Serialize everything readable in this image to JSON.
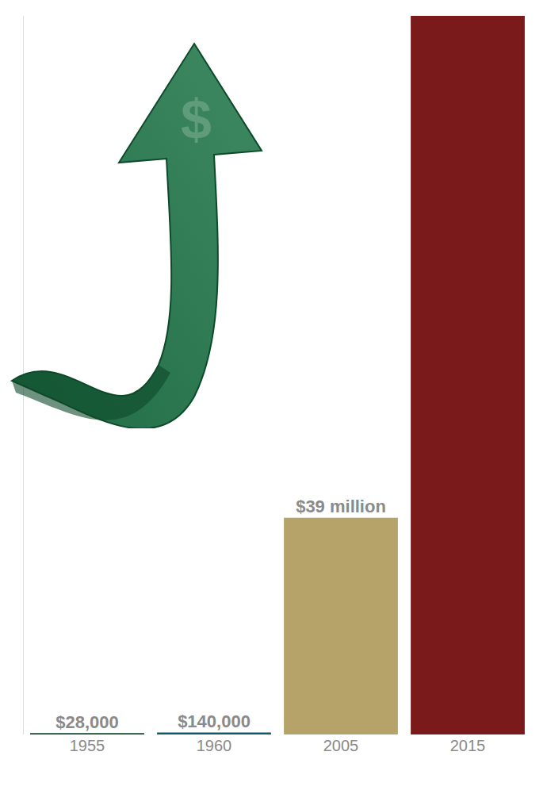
{
  "chart_data": {
    "type": "bar",
    "categories": [
      "1955",
      "1960",
      "2005",
      "2015"
    ],
    "values": [
      28000,
      140000,
      39000000,
      130000000
    ],
    "value_labels": [
      "$28,000",
      "$140,000",
      "$39 million",
      null
    ],
    "colors": [
      "#0d4a2a",
      "#0f5b6b",
      "#b5a36a",
      "#7a1a1a"
    ],
    "ylim": [
      0,
      130000000
    ],
    "data_labels": true,
    "tick_labels": "x",
    "grid": false
  }
}
